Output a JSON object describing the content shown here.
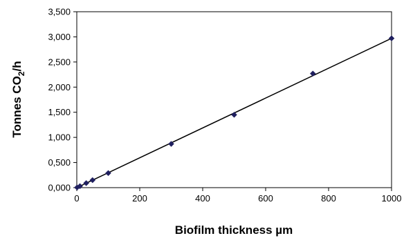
{
  "chart_data": {
    "type": "scatter",
    "title": "",
    "xlabel": "Biofilm thickness µm",
    "ylabel_parts": {
      "main": "Tonnes CO",
      "subscript": "2",
      "tail": "/h"
    },
    "xlim": [
      0,
      1000
    ],
    "ylim": [
      0,
      3.5
    ],
    "x_ticks": [
      0,
      200,
      400,
      600,
      800,
      1000
    ],
    "x_tick_labels": [
      "0",
      "200",
      "400",
      "600",
      "800",
      "1000"
    ],
    "y_ticks": [
      0,
      0.5,
      1,
      1.5,
      2,
      2.5,
      3,
      3.5
    ],
    "y_tick_labels": [
      "0,000",
      "0,500",
      "1,000",
      "1,500",
      "2,000",
      "2,500",
      "3,000",
      "3,500"
    ],
    "grid": false,
    "legend": "none",
    "series": [
      {
        "marker": "diamond",
        "color": "#1f1f5f",
        "x": [
          1,
          10,
          30,
          50,
          100,
          300,
          500,
          750,
          1000
        ],
        "y": [
          0.003,
          0.03,
          0.09,
          0.15,
          0.29,
          0.87,
          1.45,
          2.27,
          2.97
        ]
      }
    ],
    "trendline": {
      "type": "linear",
      "color": "#000000",
      "x": [
        0,
        1000
      ],
      "y": [
        0,
        2.97
      ]
    }
  }
}
